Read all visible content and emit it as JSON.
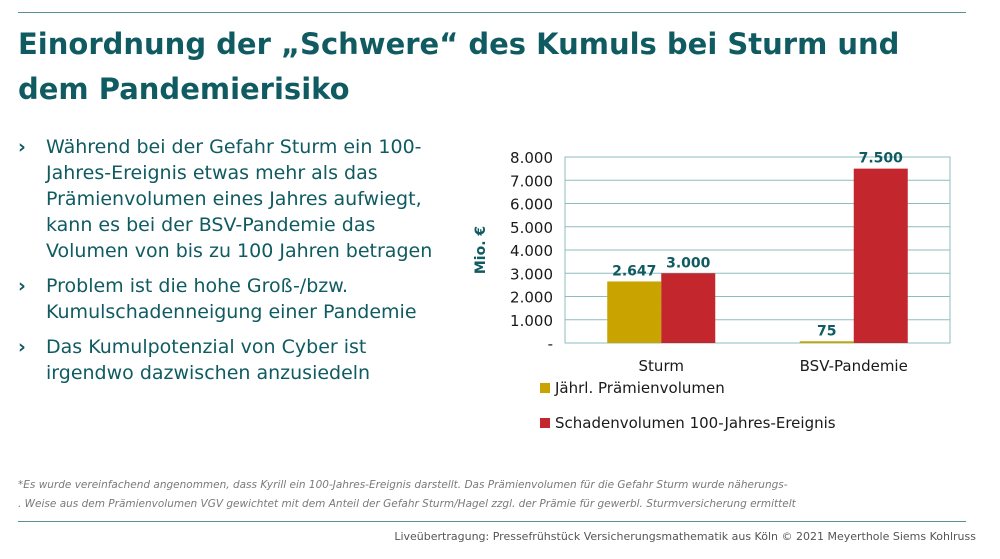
{
  "title": "Einordnung der „Schwere“ des Kumuls bei Sturm und dem Pandemierisiko",
  "bullets": [
    "Während bei der Gefahr Sturm ein 100-Jahres-Ereignis etwas mehr als das Prämienvolumen eines Jahres aufwiegt, kann es bei der BSV-Pandemie das Volumen von bis zu 100 Jahren betragen",
    "Problem ist die hohe Groß-/bzw. Kumulschadenneigung einer Pandemie",
    "Das Kumulpotenzial von Cyber ist irgendwo dazwischen anzusiedeln"
  ],
  "bullet_icon": "chevron-right-icon",
  "chart_data": {
    "type": "bar",
    "categories": [
      "Sturm",
      "BSV-Pandemie"
    ],
    "series": [
      {
        "name": "Jährl. Prämienvolumen",
        "values": [
          2647,
          75
        ],
        "labels": [
          "2.647",
          "75"
        ],
        "color": "#c9a400"
      },
      {
        "name": "Schadenvolumen 100-Jahres-Ereignis",
        "values": [
          3000,
          7500
        ],
        "labels": [
          "3.000",
          "7.500"
        ],
        "color": "#c4262e"
      }
    ],
    "ylabel": "Mio. €",
    "ylim": [
      0,
      8000
    ],
    "yticks": [
      "-",
      "1.000",
      "2.000",
      "3.000",
      "4.000",
      "5.000",
      "6.000",
      "7.000",
      "8.000"
    ],
    "grid": true,
    "legend": "bottom"
  },
  "footnote": [
    "*Es wurde vereinfachend angenommen, dass Kyrill ein 100-Jahres-Ereignis darstellt. Das Prämienvolumen für die Gefahr Sturm wurde näherungs-",
    ". Weise aus dem Prämienvolumen VGV gewichtet mit dem Anteil der Gefahr Sturm/Hagel zzgl. der Prämie für gewerbl. Sturmversicherung ermittelt"
  ],
  "footer": "Liveübertragung: Pressefrühstück Versicherungsmathematik aus Köln © 2021 Meyerthole Siems Kohlruss"
}
